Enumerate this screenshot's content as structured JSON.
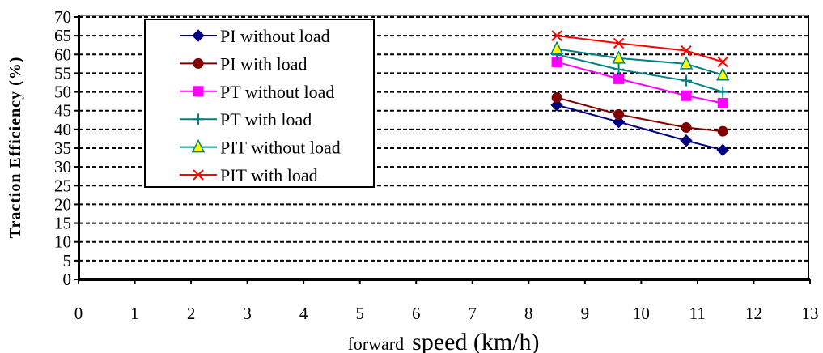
{
  "chart_data": {
    "type": "line",
    "title": "",
    "ylabel": "Traction Efficiency (%)",
    "xlabel_prefix": "forward",
    "xlabel_main": "speed (km/h)",
    "xlim": [
      0,
      13
    ],
    "ylim": [
      0,
      70
    ],
    "xticks": [
      0,
      1,
      2,
      3,
      4,
      5,
      6,
      7,
      8,
      9,
      10,
      11,
      12,
      13
    ],
    "yticks": [
      0,
      5,
      10,
      15,
      20,
      25,
      30,
      35,
      40,
      45,
      50,
      55,
      60,
      65,
      70
    ],
    "grid": "horizontal dashed",
    "legend_position": "top-left inside plot",
    "series": [
      {
        "name": "PI without load",
        "color": "#000080",
        "marker": "diamond",
        "x": [
          8.5,
          9.6,
          10.8,
          11.45
        ],
        "y": [
          46.5,
          42,
          37,
          34.5
        ]
      },
      {
        "name": "PI with load",
        "color": "#800000",
        "marker": "circle",
        "x": [
          8.5,
          9.6,
          10.8,
          11.45
        ],
        "y": [
          48.5,
          44,
          40.5,
          39.5
        ]
      },
      {
        "name": "PT without load",
        "color": "#ff00ff",
        "marker": "square",
        "x": [
          8.5,
          9.6,
          10.8,
          11.45
        ],
        "y": [
          58,
          53.5,
          49,
          47
        ]
      },
      {
        "name": "PT with load",
        "color": "#008080",
        "marker": "plus",
        "x": [
          8.5,
          9.6,
          10.8,
          11.45
        ],
        "y": [
          60,
          56,
          53,
          50
        ]
      },
      {
        "name": "PIT without load",
        "color": "#008080",
        "marker_fill": "#ffff00",
        "marker": "triangle",
        "x": [
          8.5,
          9.6,
          10.8,
          11.45
        ],
        "y": [
          61.5,
          59,
          57.5,
          54.5
        ]
      },
      {
        "name": "PIT with load",
        "color": "#ff0000",
        "marker": "x",
        "x": [
          8.5,
          9.6,
          10.8,
          11.45
        ],
        "y": [
          65,
          63,
          61,
          58
        ]
      }
    ]
  }
}
